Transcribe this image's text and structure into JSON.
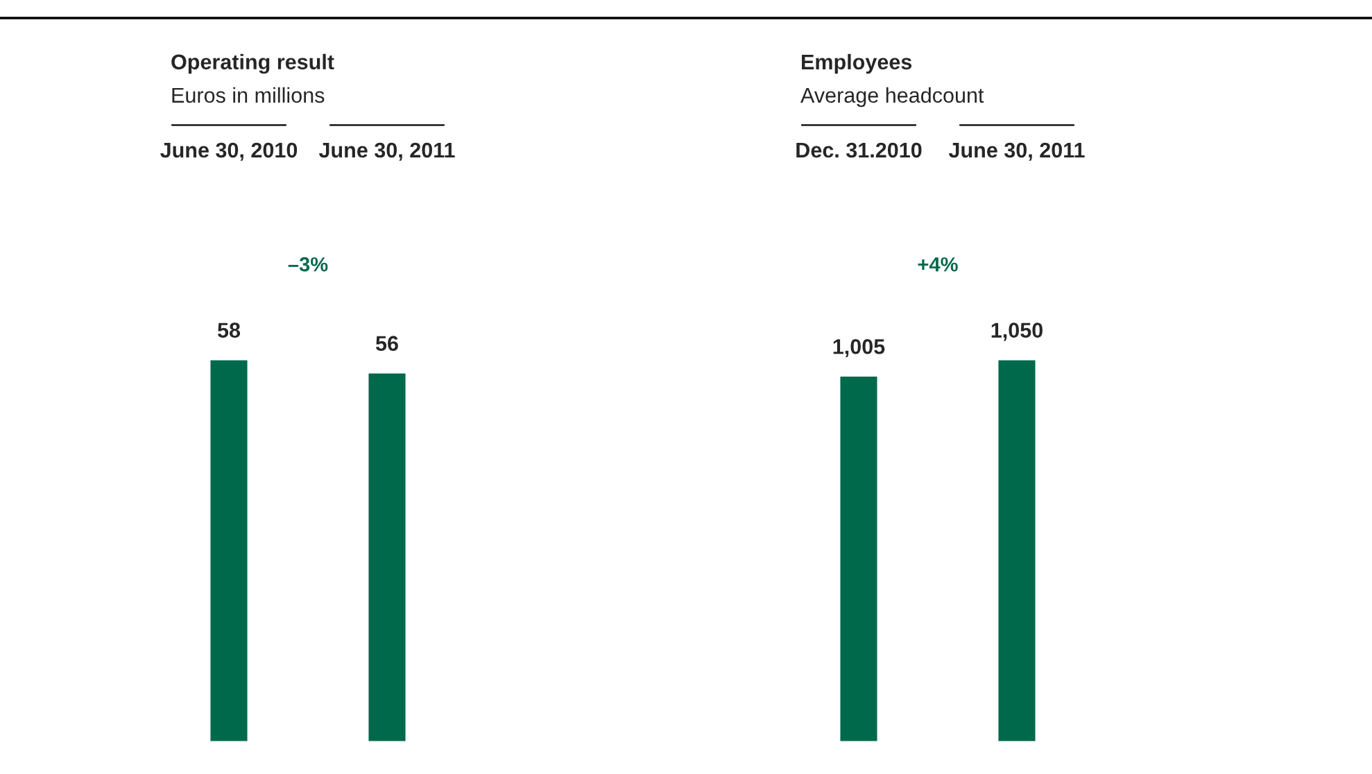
{
  "chart_data": [
    {
      "type": "bar",
      "title": "Operating result",
      "subtitle": "Euros in millions",
      "categories": [
        "June 30, 2010",
        "June 30, 2011"
      ],
      "values": [
        58,
        56
      ],
      "color": "#00694b",
      "data_labels": true,
      "annotations": [
        "–3%"
      ],
      "tick_labels": "x"
    },
    {
      "type": "bar",
      "title": "Employees",
      "subtitle": "Average headcount",
      "categories": [
        "Dec. 31.2010",
        "June 30, 2011"
      ],
      "values": [
        1005,
        1050
      ],
      "value_labels": [
        "1,005",
        "1,050"
      ],
      "color": "#00694b",
      "annotations": [
        "+4%"
      ],
      "tick_labels": "x"
    }
  ]
}
